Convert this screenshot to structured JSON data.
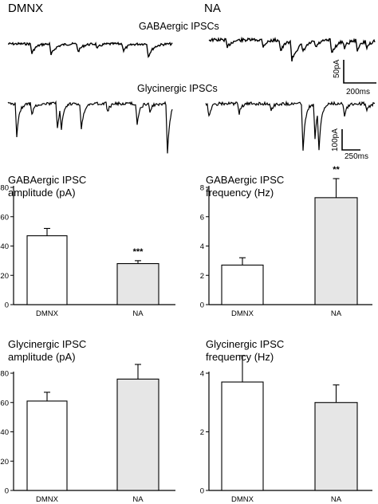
{
  "headers": {
    "left": "DMNX",
    "right": "NA"
  },
  "traces": {
    "gaba_label": "GABAergic IPSCs",
    "gly_label": "Glycinergic IPSCs",
    "gaba_scale": {
      "amp": "50pA",
      "time": "200ms"
    },
    "gly_scale": {
      "amp": "100pA",
      "time": "250ms"
    }
  },
  "colors": {
    "dmnx_bar": "#ffffff",
    "na_bar": "#e6e6e6",
    "ink": "#000000"
  },
  "chart_data": [
    {
      "type": "bar",
      "title": "GABAergic IPSC\namplitude (pA)",
      "categories": [
        "DMNX",
        "NA"
      ],
      "values": [
        47,
        28
      ],
      "errors": [
        5,
        2
      ],
      "significance": [
        "",
        "***"
      ],
      "ylim": [
        0,
        80
      ],
      "yticks": [
        0,
        20,
        40,
        60,
        80
      ]
    },
    {
      "type": "bar",
      "title": "GABAergic IPSC\nfrequency (Hz)",
      "categories": [
        "DMNX",
        "NA"
      ],
      "values": [
        2.7,
        7.3
      ],
      "errors": [
        0.5,
        1.3
      ],
      "significance": [
        "",
        "**"
      ],
      "ylim": [
        0,
        8
      ],
      "yticks": [
        0,
        2,
        4,
        6,
        8
      ]
    },
    {
      "type": "bar",
      "title": "Glycinergic IPSC\namplitude (pA)",
      "categories": [
        "DMNX",
        "NA"
      ],
      "values": [
        61,
        76
      ],
      "errors": [
        6,
        10
      ],
      "significance": [
        "",
        ""
      ],
      "ylim": [
        0,
        80
      ],
      "yticks": [
        0,
        20,
        40,
        60,
        80
      ]
    },
    {
      "type": "bar",
      "title": "Glycinergic IPSC\nfrequency (Hz)",
      "categories": [
        "DMNX",
        "NA"
      ],
      "values": [
        3.7,
        3.0
      ],
      "errors": [
        0.9,
        0.6
      ],
      "significance": [
        "",
        ""
      ],
      "ylim": [
        0,
        4
      ],
      "yticks": [
        0,
        2,
        4
      ]
    }
  ]
}
